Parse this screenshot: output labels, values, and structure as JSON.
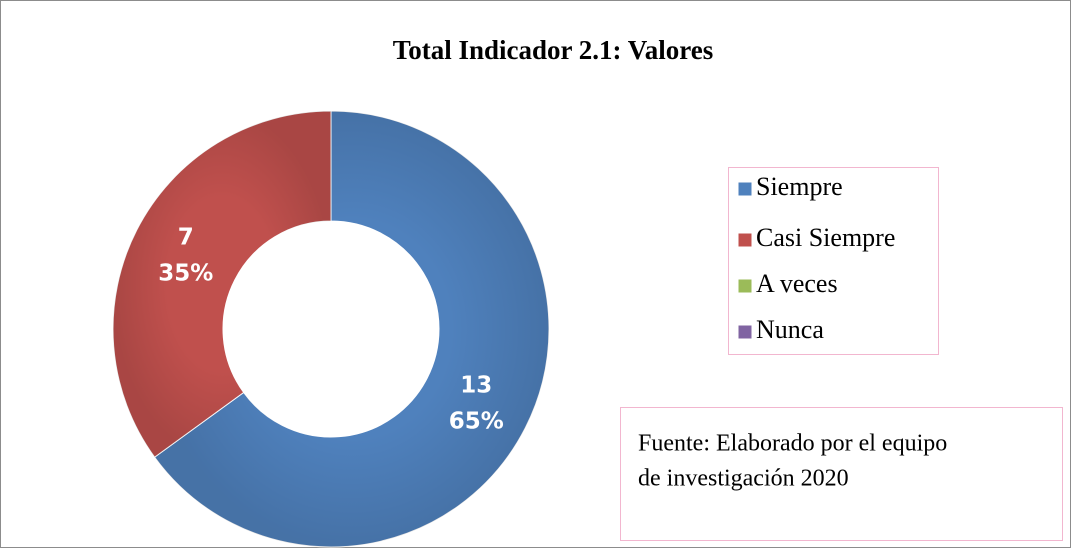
{
  "chart_data": {
    "type": "donut",
    "title": "Total Indicador 2.1: Valores",
    "categories": [
      "Siempre",
      "Casi Siempre",
      "A veces",
      "Nunca"
    ],
    "values": [
      13,
      7,
      0,
      0
    ],
    "percentage_labels": [
      "65%",
      "35%",
      null,
      null
    ],
    "colors": [
      "#4f81bd",
      "#c0504d",
      "#9bbb59",
      "#8064a2"
    ],
    "legend": "right",
    "source": [
      "Fuente: Elaborado por el equipo",
      "de investigación 2020"
    ]
  }
}
